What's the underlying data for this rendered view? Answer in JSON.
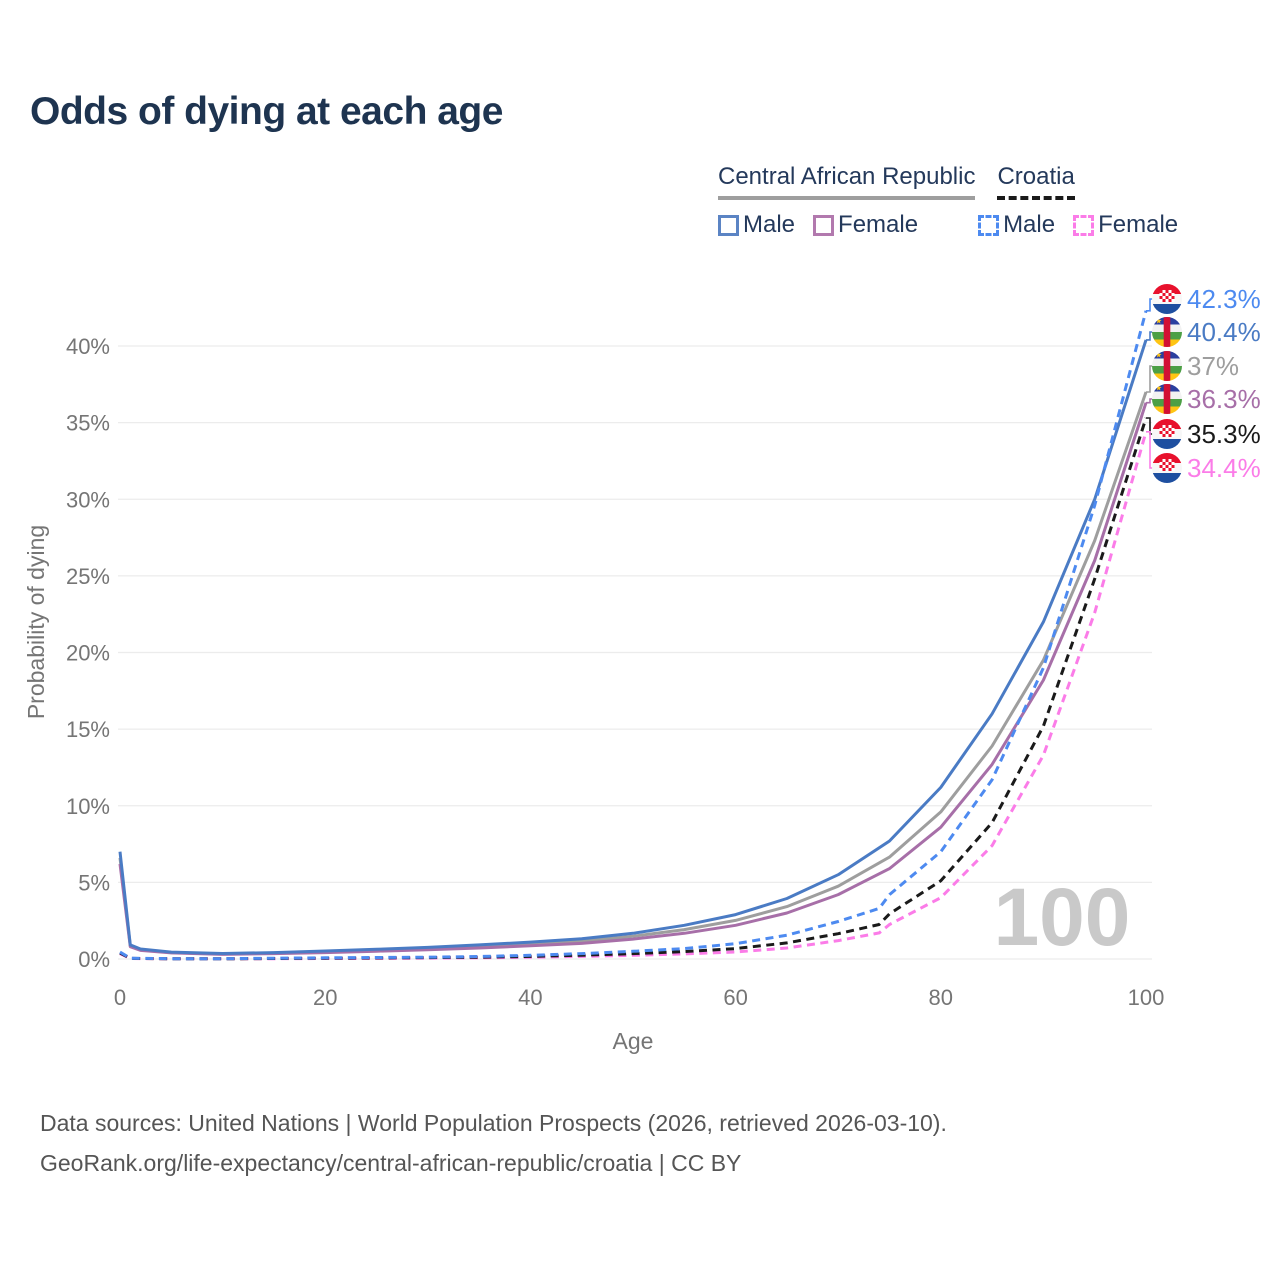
{
  "page": {
    "title": "Odds of dying at each age",
    "title_color": "#1e3450",
    "background": "#ffffff"
  },
  "legend": {
    "groups": [
      {
        "label": "Central African Republic",
        "line_style": "solid",
        "line_color": "#9e9e9e"
      },
      {
        "label": "Croatia",
        "line_style": "dashed",
        "line_color": "#1a1a1a"
      }
    ],
    "items": [
      {
        "label": "Male",
        "group": "Central African Republic",
        "swatch_style": "solid",
        "swatch_color": "#5b84c4"
      },
      {
        "label": "Female",
        "group": "Central African Republic",
        "swatch_style": "solid",
        "swatch_color": "#b279ae"
      },
      {
        "label": "Male",
        "group": "Croatia",
        "swatch_style": "dashed",
        "swatch_color": "#4d8af0"
      },
      {
        "label": "Female",
        "group": "Croatia",
        "swatch_style": "dashed",
        "swatch_color": "#fb7ce8"
      }
    ]
  },
  "chart_data": {
    "type": "line",
    "title": "Odds of dying at each age",
    "xlabel": "Age",
    "ylabel": "Probability of dying",
    "xlim": [
      0,
      100
    ],
    "ylim": [
      0,
      44
    ],
    "grid": "horizontal",
    "legend_position": "top-right",
    "watermark": "100",
    "x_ticks": [
      {
        "value": 0,
        "label": "0"
      },
      {
        "value": 20,
        "label": "20"
      },
      {
        "value": 40,
        "label": "40"
      },
      {
        "value": 60,
        "label": "60"
      },
      {
        "value": 80,
        "label": "80"
      },
      {
        "value": 100,
        "label": "100"
      }
    ],
    "y_ticks": [
      {
        "value": 0,
        "label": "0%"
      },
      {
        "value": 5,
        "label": "5%"
      },
      {
        "value": 10,
        "label": "10%"
      },
      {
        "value": 15,
        "label": "15%"
      },
      {
        "value": 20,
        "label": "20%"
      },
      {
        "value": 25,
        "label": "25%"
      },
      {
        "value": 30,
        "label": "30%"
      },
      {
        "value": 35,
        "label": "35%"
      },
      {
        "value": 40,
        "label": "40%"
      }
    ],
    "series": [
      {
        "name": "Central African Republic Both sexes",
        "color": "#9e9e9e",
        "style": "solid",
        "points": [
          [
            0,
            6.6
          ],
          [
            1,
            0.86
          ],
          [
            2,
            0.6
          ],
          [
            5,
            0.42
          ],
          [
            10,
            0.33
          ],
          [
            15,
            0.38
          ],
          [
            20,
            0.47
          ],
          [
            25,
            0.57
          ],
          [
            30,
            0.68
          ],
          [
            35,
            0.82
          ],
          [
            40,
            0.98
          ],
          [
            45,
            1.17
          ],
          [
            50,
            1.48
          ],
          [
            55,
            1.92
          ],
          [
            60,
            2.52
          ],
          [
            65,
            3.42
          ],
          [
            70,
            4.75
          ],
          [
            75,
            6.65
          ],
          [
            80,
            9.6
          ],
          [
            85,
            13.9
          ],
          [
            90,
            19.5
          ],
          [
            95,
            27.3
          ],
          [
            100,
            37.0
          ]
        ]
      },
      {
        "name": "Central African Republic Female",
        "color": "#a76fa8",
        "style": "solid",
        "points": [
          [
            0,
            6.2
          ],
          [
            1,
            0.8
          ],
          [
            2,
            0.56
          ],
          [
            5,
            0.4
          ],
          [
            10,
            0.3
          ],
          [
            15,
            0.35
          ],
          [
            20,
            0.42
          ],
          [
            25,
            0.51
          ],
          [
            30,
            0.61
          ],
          [
            35,
            0.72
          ],
          [
            40,
            0.86
          ],
          [
            45,
            1.02
          ],
          [
            50,
            1.3
          ],
          [
            55,
            1.68
          ],
          [
            60,
            2.2
          ],
          [
            65,
            3.0
          ],
          [
            70,
            4.2
          ],
          [
            75,
            5.9
          ],
          [
            80,
            8.6
          ],
          [
            85,
            12.7
          ],
          [
            90,
            18.2
          ],
          [
            95,
            26.0
          ],
          [
            100,
            36.3
          ]
        ]
      },
      {
        "name": "Central African Republic Male",
        "color": "#4a7bc4",
        "style": "solid",
        "points": [
          [
            0,
            7.0
          ],
          [
            1,
            0.92
          ],
          [
            2,
            0.65
          ],
          [
            5,
            0.45
          ],
          [
            10,
            0.36
          ],
          [
            15,
            0.42
          ],
          [
            20,
            0.52
          ],
          [
            25,
            0.63
          ],
          [
            30,
            0.76
          ],
          [
            35,
            0.92
          ],
          [
            40,
            1.1
          ],
          [
            45,
            1.32
          ],
          [
            50,
            1.68
          ],
          [
            55,
            2.2
          ],
          [
            60,
            2.9
          ],
          [
            65,
            3.95
          ],
          [
            70,
            5.5
          ],
          [
            75,
            7.7
          ],
          [
            80,
            11.2
          ],
          [
            85,
            16.0
          ],
          [
            90,
            22.0
          ],
          [
            95,
            30.0
          ],
          [
            100,
            40.4
          ]
        ]
      },
      {
        "name": "Croatia Female",
        "color": "#fb7ce8",
        "style": "dashed",
        "points": [
          [
            0,
            0.35
          ],
          [
            1,
            0.03
          ],
          [
            5,
            0.01
          ],
          [
            10,
            0.01
          ],
          [
            15,
            0.02
          ],
          [
            20,
            0.03
          ],
          [
            25,
            0.04
          ],
          [
            30,
            0.06
          ],
          [
            35,
            0.08
          ],
          [
            40,
            0.12
          ],
          [
            45,
            0.17
          ],
          [
            50,
            0.24
          ],
          [
            55,
            0.33
          ],
          [
            60,
            0.46
          ],
          [
            65,
            0.72
          ],
          [
            70,
            1.2
          ],
          [
            74,
            1.7
          ],
          [
            75,
            2.25
          ],
          [
            80,
            4.0
          ],
          [
            85,
            7.4
          ],
          [
            90,
            13.3
          ],
          [
            95,
            22.6
          ],
          [
            100,
            34.4
          ]
        ]
      },
      {
        "name": "Croatia Both sexes",
        "color": "#1a1a1a",
        "style": "dashed",
        "points": [
          [
            0,
            0.4
          ],
          [
            1,
            0.04
          ],
          [
            5,
            0.01
          ],
          [
            10,
            0.01
          ],
          [
            15,
            0.03
          ],
          [
            20,
            0.05
          ],
          [
            25,
            0.07
          ],
          [
            30,
            0.09
          ],
          [
            35,
            0.12
          ],
          [
            40,
            0.17
          ],
          [
            45,
            0.25
          ],
          [
            50,
            0.35
          ],
          [
            55,
            0.48
          ],
          [
            60,
            0.68
          ],
          [
            65,
            1.05
          ],
          [
            70,
            1.65
          ],
          [
            74,
            2.25
          ],
          [
            75,
            2.95
          ],
          [
            80,
            5.1
          ],
          [
            85,
            8.9
          ],
          [
            90,
            15.2
          ],
          [
            95,
            24.8
          ],
          [
            100,
            35.3
          ]
        ]
      },
      {
        "name": "Croatia Male",
        "color": "#4d8af0",
        "style": "dashed",
        "points": [
          [
            0,
            0.45
          ],
          [
            1,
            0.05
          ],
          [
            5,
            0.02
          ],
          [
            10,
            0.02
          ],
          [
            15,
            0.05
          ],
          [
            20,
            0.08
          ],
          [
            25,
            0.1
          ],
          [
            30,
            0.12
          ],
          [
            35,
            0.16
          ],
          [
            40,
            0.24
          ],
          [
            45,
            0.35
          ],
          [
            50,
            0.5
          ],
          [
            55,
            0.68
          ],
          [
            60,
            1.0
          ],
          [
            65,
            1.55
          ],
          [
            70,
            2.45
          ],
          [
            74,
            3.3
          ],
          [
            75,
            4.2
          ],
          [
            80,
            7.0
          ],
          [
            85,
            11.7
          ],
          [
            90,
            19.0
          ],
          [
            95,
            29.6
          ],
          [
            100,
            42.3
          ]
        ]
      }
    ],
    "annotations": [
      {
        "label": "42.3%",
        "series": "Croatia Male",
        "flag": "croatia",
        "color": "#4d8af0"
      },
      {
        "label": "40.4%",
        "series": "Central African Republic Male",
        "flag": "central-african-republic",
        "color": "#4a7bc4"
      },
      {
        "label": "37%",
        "series": "Central African Republic Both sexes",
        "flag": "central-african-republic",
        "color": "#9e9e9e"
      },
      {
        "label": "36.3%",
        "series": "Central African Republic Female",
        "flag": "central-african-republic",
        "color": "#a76fa8"
      },
      {
        "label": "35.3%",
        "series": "Croatia Both sexes",
        "flag": "croatia",
        "color": "#1a1a1a"
      },
      {
        "label": "34.4%",
        "series": "Croatia Female",
        "flag": "croatia",
        "color": "#fb7ce8"
      }
    ],
    "axis_color": "#757575",
    "grid_color": "#ececec",
    "watermark_color": "#c9c9c9"
  },
  "footer": {
    "line1": "Data sources: United Nations | World Population Prospects (2026, retrieved 2026-03-10).",
    "line2": "GeoRank.org/life-expectancy/central-african-republic/croatia | CC BY"
  }
}
